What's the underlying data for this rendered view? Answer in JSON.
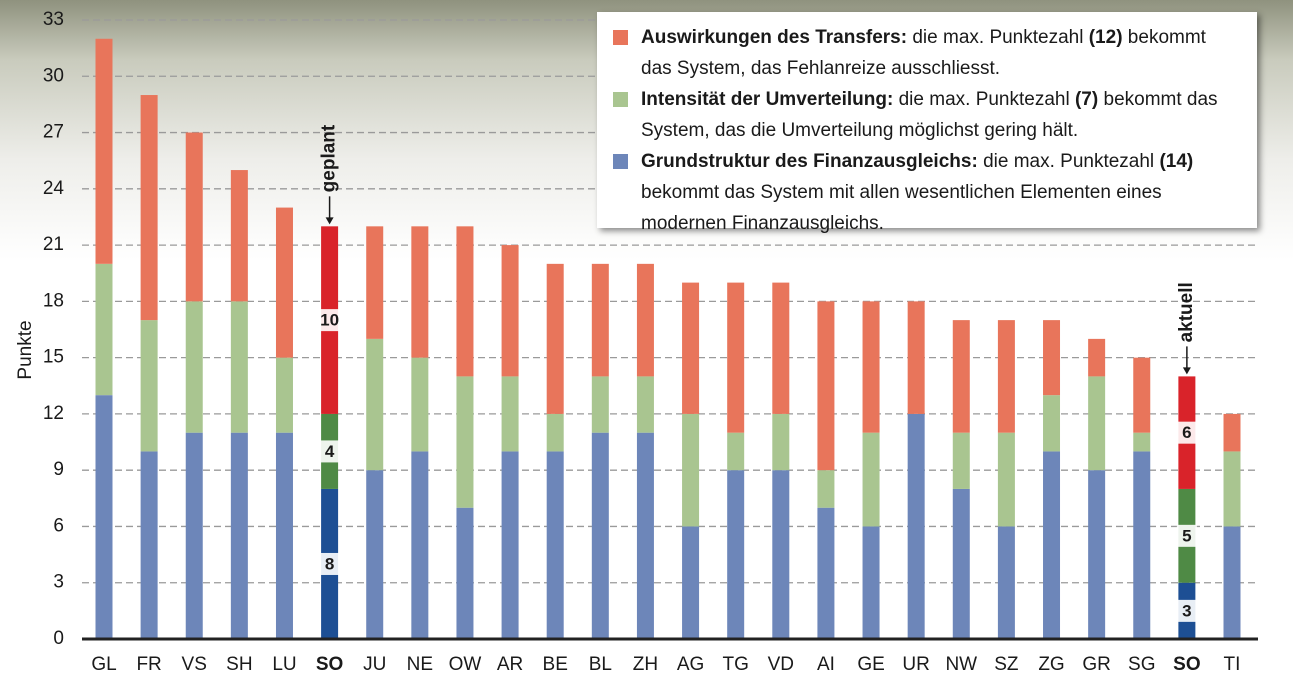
{
  "chart_data": {
    "type": "stacked_bar",
    "y_label": "Punkte",
    "categories": [
      "GL",
      "FR",
      "VS",
      "SH",
      "LU",
      "SO",
      "JU",
      "NE",
      "OW",
      "AR",
      "BE",
      "BL",
      "ZH",
      "AG",
      "TG",
      "VD",
      "AI",
      "GE",
      "UR",
      "NW",
      "SZ",
      "ZG",
      "GR",
      "SG",
      "SO",
      "TI"
    ],
    "series": [
      {
        "name": "Grundstruktur des Finanzausgleichs:",
        "description": [
          "die max. Punktezahl ",
          "(14)",
          " bekommt das System mit allen wesentlichen Elementen eines modernen Finanzausgleichs."
        ],
        "color": "#6d86b9",
        "highlight_color": "#1d4f94",
        "values": [
          13,
          10,
          11,
          11,
          11,
          8,
          9,
          10,
          7,
          10,
          10,
          11,
          11,
          6,
          9,
          9,
          7,
          6,
          12,
          8,
          6,
          10,
          9,
          10,
          3,
          6
        ]
      },
      {
        "name": "Intensität der Umverteilung:",
        "description": [
          "die max. Punktezahl ",
          "(7)",
          " bekommt das System, das die Umverteilung möglichst gering hält."
        ],
        "color": "#a9c590",
        "highlight_color": "#4f8a45",
        "values": [
          7,
          7,
          7,
          7,
          4,
          4,
          7,
          5,
          7,
          4,
          2,
          3,
          3,
          6,
          2,
          3,
          2,
          5,
          0,
          3,
          5,
          3,
          5,
          1,
          5,
          4
        ]
      },
      {
        "name": "Auswirkungen des Transfers:",
        "description": [
          "die max. Punktezahl ",
          "(12)",
          " bekommt das System, das Fehlanreize ausschliesst."
        ],
        "color": "#e8755b",
        "highlight_color": "#d9232a",
        "values": [
          12,
          12,
          9,
          7,
          8,
          10,
          6,
          7,
          8,
          7,
          8,
          6,
          6,
          7,
          8,
          7,
          9,
          7,
          6,
          6,
          6,
          4,
          2,
          4,
          6,
          2
        ]
      }
    ],
    "annotations": [
      {
        "text": "geplant",
        "category": 5
      },
      {
        "text": "aktuell",
        "category": 24
      }
    ],
    "ylim": [
      0,
      33
    ],
    "yticks": [
      0,
      3,
      6,
      9,
      12,
      15,
      18,
      21,
      24,
      27,
      30,
      33
    ],
    "grid": true
  }
}
